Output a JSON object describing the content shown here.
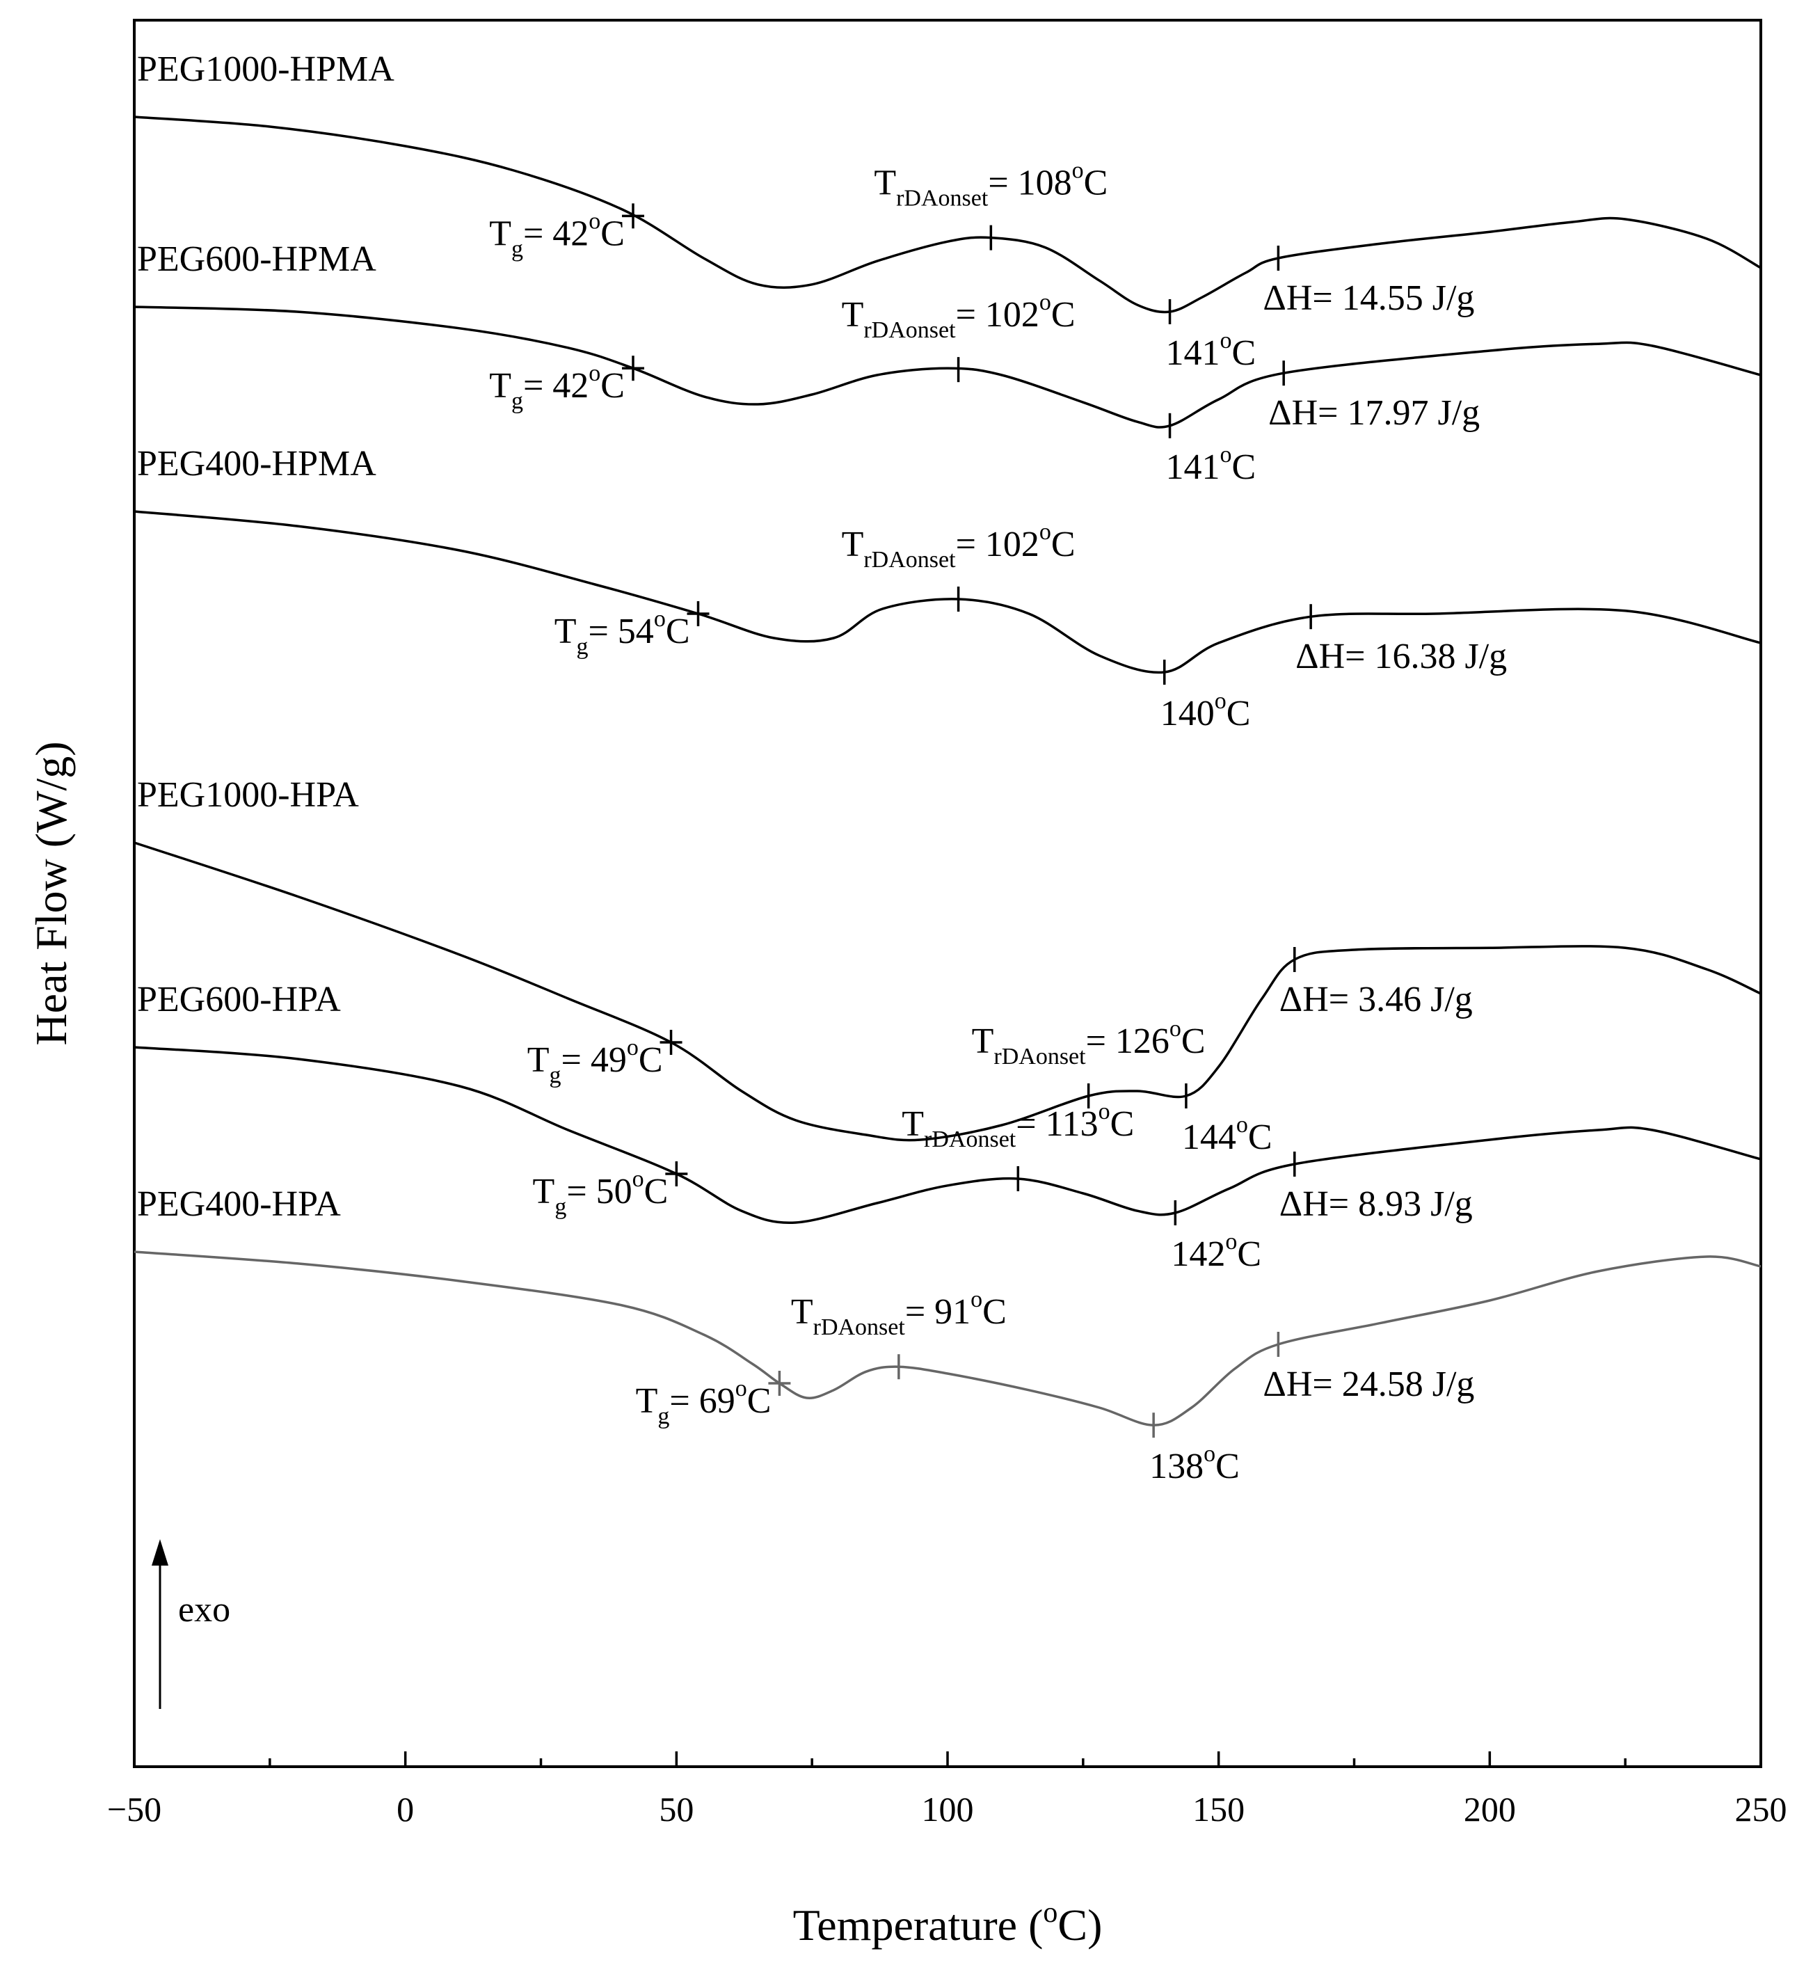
{
  "chart_data": {
    "type": "line",
    "title": "",
    "xlabel": "Temperature (°C)",
    "xlabel_parts": {
      "main": "Temperature (",
      "sup": "o",
      "tail": "C)"
    },
    "ylabel": "Heat Flow (W/g)",
    "xlim": [
      -50,
      250
    ],
    "xticks": [
      -50,
      0,
      50,
      100,
      150,
      200,
      250
    ],
    "xtick_labels": [
      "−50",
      "0",
      "50",
      "100",
      "150",
      "200",
      "250"
    ],
    "y_units": "arbitrary (stacked curves, offset)",
    "grid": false,
    "exo_label": "exo",
    "series": [
      {
        "name": "PEG1000-HPMA",
        "color": "#000000",
        "offset": 0,
        "points": [
          [
            -50,
            0.0
          ],
          [
            -25,
            -0.1
          ],
          [
            0,
            -0.3
          ],
          [
            20,
            -0.55
          ],
          [
            40,
            -0.95
          ],
          [
            55,
            -1.45
          ],
          [
            65,
            -1.72
          ],
          [
            75,
            -1.72
          ],
          [
            87,
            -1.48
          ],
          [
            100,
            -1.28
          ],
          [
            108,
            -1.24
          ],
          [
            118,
            -1.34
          ],
          [
            128,
            -1.68
          ],
          [
            135,
            -1.93
          ],
          [
            141,
            -2.0
          ],
          [
            147,
            -1.85
          ],
          [
            155,
            -1.6
          ],
          [
            161,
            -1.45
          ],
          [
            180,
            -1.3
          ],
          [
            200,
            -1.18
          ],
          [
            215,
            -1.08
          ],
          [
            225,
            -1.05
          ],
          [
            240,
            -1.25
          ],
          [
            250,
            -1.55
          ]
        ],
        "markers": [
          {
            "x": 42,
            "type": "tg",
            "label": "T",
            "sub": "g",
            "text": "= 42",
            "unit": "C"
          },
          {
            "x": 108,
            "type": "onset",
            "label": "T",
            "sub": "rDAonset",
            "text": "= 108",
            "unit": "C"
          },
          {
            "x": 141,
            "type": "peak",
            "text": "141",
            "unit": "C"
          },
          {
            "x": 161,
            "type": "end",
            "text": "ΔH= 14.55 J/g"
          }
        ]
      },
      {
        "name": "PEG600-HPMA",
        "color": "#000000",
        "offset": -1.95,
        "points": [
          [
            -50,
            0.0
          ],
          [
            -20,
            -0.05
          ],
          [
            10,
            -0.22
          ],
          [
            30,
            -0.42
          ],
          [
            42,
            -0.63
          ],
          [
            55,
            -0.92
          ],
          [
            65,
            -1.0
          ],
          [
            75,
            -0.9
          ],
          [
            87,
            -0.7
          ],
          [
            100,
            -0.63
          ],
          [
            110,
            -0.7
          ],
          [
            125,
            -0.98
          ],
          [
            135,
            -1.18
          ],
          [
            141,
            -1.22
          ],
          [
            150,
            -0.95
          ],
          [
            162,
            -0.68
          ],
          [
            200,
            -0.45
          ],
          [
            220,
            -0.38
          ],
          [
            230,
            -0.4
          ],
          [
            250,
            -0.7
          ]
        ],
        "markers": [
          {
            "x": 42,
            "type": "tg",
            "label": "T",
            "sub": "g",
            "text": "= 42",
            "unit": "C"
          },
          {
            "x": 102,
            "type": "onset",
            "label": "T",
            "sub": "rDAonset",
            "text": "= 102",
            "unit": "C"
          },
          {
            "x": 141,
            "type": "peak",
            "text": "141",
            "unit": "C"
          },
          {
            "x": 162,
            "type": "end",
            "text": "ΔH= 17.97 J/g"
          }
        ]
      },
      {
        "name": "PEG400-HPMA",
        "color": "#000000",
        "offset": -4.05,
        "points": [
          [
            -50,
            0.0
          ],
          [
            -20,
            -0.15
          ],
          [
            10,
            -0.4
          ],
          [
            35,
            -0.75
          ],
          [
            54,
            -1.05
          ],
          [
            68,
            -1.3
          ],
          [
            79,
            -1.3
          ],
          [
            88,
            -1.0
          ],
          [
            102,
            -0.9
          ],
          [
            115,
            -1.05
          ],
          [
            128,
            -1.48
          ],
          [
            140,
            -1.65
          ],
          [
            150,
            -1.35
          ],
          [
            167,
            -1.08
          ],
          [
            190,
            -1.05
          ],
          [
            225,
            -1.02
          ],
          [
            250,
            -1.35
          ]
        ],
        "markers": [
          {
            "x": 54,
            "type": "tg",
            "label": "T",
            "sub": "g",
            "text": "= 54",
            "unit": "C"
          },
          {
            "x": 102,
            "type": "onset",
            "label": "T",
            "sub": "rDAonset",
            "text": "= 102",
            "unit": "C"
          },
          {
            "x": 140,
            "type": "peak",
            "text": "140",
            "unit": "C"
          },
          {
            "x": 167,
            "type": "end",
            "text": "ΔH= 16.38 J/g"
          }
        ]
      },
      {
        "name": "PEG1000-HPA",
        "color": "#000000",
        "offset": -7.45,
        "points": [
          [
            -50,
            0.0
          ],
          [
            -20,
            -0.55
          ],
          [
            10,
            -1.15
          ],
          [
            30,
            -1.6
          ],
          [
            49,
            -2.05
          ],
          [
            62,
            -2.55
          ],
          [
            72,
            -2.85
          ],
          [
            85,
            -3.0
          ],
          [
            95,
            -3.05
          ],
          [
            110,
            -2.9
          ],
          [
            126,
            -2.6
          ],
          [
            135,
            -2.55
          ],
          [
            144,
            -2.6
          ],
          [
            150,
            -2.3
          ],
          [
            158,
            -1.6
          ],
          [
            164,
            -1.2
          ],
          [
            175,
            -1.1
          ],
          [
            200,
            -1.08
          ],
          [
            225,
            -1.08
          ],
          [
            240,
            -1.3
          ],
          [
            250,
            -1.55
          ]
        ],
        "markers": [
          {
            "x": 49,
            "type": "tg",
            "label": "T",
            "sub": "g",
            "text": "= 49",
            "unit": "C"
          },
          {
            "x": 126,
            "type": "onset",
            "label": "T",
            "sub": "rDAonset",
            "text": "= 126",
            "unit": "C"
          },
          {
            "x": 144,
            "type": "peak",
            "text": "144",
            "unit": "C"
          },
          {
            "x": 164,
            "type": "end",
            "text": "ΔH= 3.46 J/g"
          }
        ]
      },
      {
        "name": "PEG600-HPA",
        "color": "#000000",
        "offset": -9.55,
        "points": [
          [
            -50,
            0.0
          ],
          [
            -20,
            -0.12
          ],
          [
            10,
            -0.4
          ],
          [
            30,
            -0.85
          ],
          [
            50,
            -1.3
          ],
          [
            62,
            -1.68
          ],
          [
            72,
            -1.8
          ],
          [
            87,
            -1.6
          ],
          [
            100,
            -1.42
          ],
          [
            113,
            -1.35
          ],
          [
            125,
            -1.5
          ],
          [
            135,
            -1.68
          ],
          [
            142,
            -1.7
          ],
          [
            152,
            -1.45
          ],
          [
            164,
            -1.2
          ],
          [
            200,
            -0.95
          ],
          [
            220,
            -0.85
          ],
          [
            230,
            -0.85
          ],
          [
            250,
            -1.15
          ]
        ],
        "markers": [
          {
            "x": 50,
            "type": "tg",
            "label": "T",
            "sub": "g",
            "text": "= 50",
            "unit": "C"
          },
          {
            "x": 113,
            "type": "onset",
            "label": "T",
            "sub": "rDAonset",
            "text": "= 113",
            "unit": "C"
          },
          {
            "x": 142,
            "type": "peak",
            "text": "142",
            "unit": "C"
          },
          {
            "x": 164,
            "type": "end",
            "text": "ΔH= 8.93 J/g"
          }
        ]
      },
      {
        "name": "PEG400-HPA",
        "color": "#666666",
        "offset": -11.65,
        "points": [
          [
            -50,
            0.0
          ],
          [
            -20,
            -0.12
          ],
          [
            10,
            -0.3
          ],
          [
            40,
            -0.55
          ],
          [
            55,
            -0.85
          ],
          [
            64,
            -1.15
          ],
          [
            69,
            -1.35
          ],
          [
            74,
            -1.5
          ],
          [
            79,
            -1.42
          ],
          [
            85,
            -1.23
          ],
          [
            91,
            -1.18
          ],
          [
            100,
            -1.25
          ],
          [
            115,
            -1.42
          ],
          [
            128,
            -1.6
          ],
          [
            138,
            -1.78
          ],
          [
            145,
            -1.6
          ],
          [
            153,
            -1.2
          ],
          [
            161,
            -0.95
          ],
          [
            180,
            -0.73
          ],
          [
            200,
            -0.5
          ],
          [
            220,
            -0.2
          ],
          [
            240,
            -0.05
          ],
          [
            250,
            -0.15
          ]
        ],
        "markers": [
          {
            "x": 69,
            "type": "tg",
            "label": "T",
            "sub": "g",
            "text": "= 69",
            "unit": "C"
          },
          {
            "x": 91,
            "type": "onset",
            "label": "T",
            "sub": "rDAonset",
            "text": "= 91",
            "unit": "C"
          },
          {
            "x": 138,
            "type": "peak",
            "text": "138",
            "unit": "C"
          },
          {
            "x": 161,
            "type": "end",
            "text": "ΔH= 24.58 J/g"
          }
        ]
      }
    ]
  }
}
